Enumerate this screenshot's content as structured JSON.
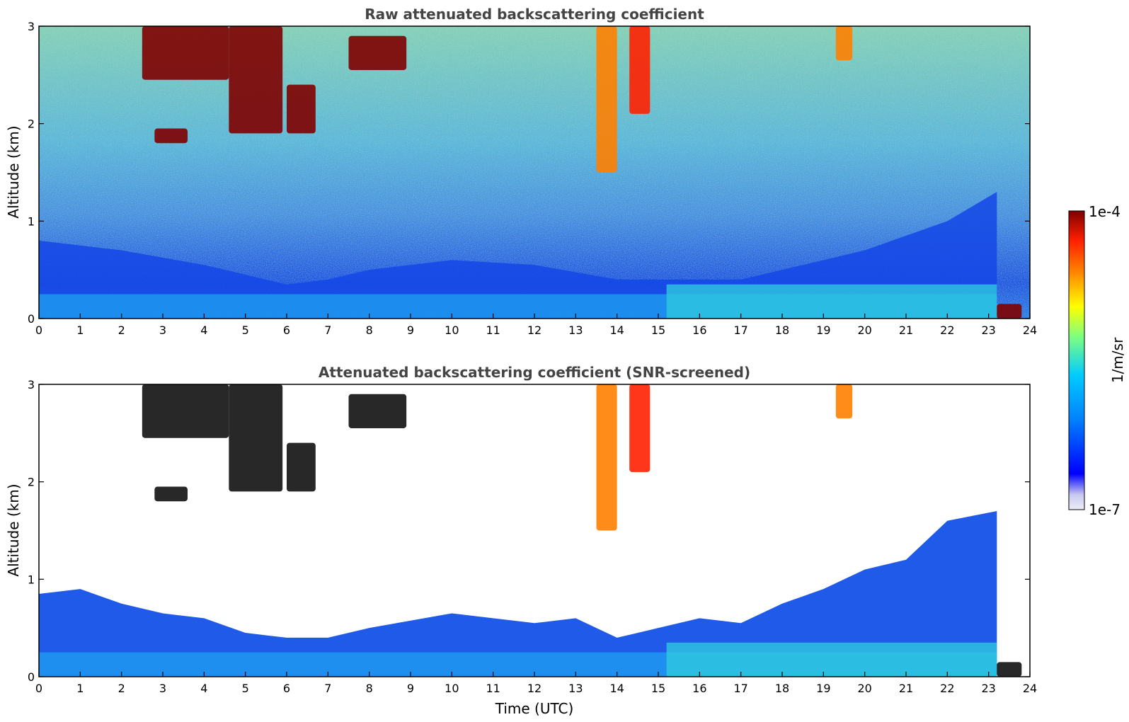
{
  "chart_data": [
    {
      "type": "heatmap",
      "title": "Raw attenuated backscattering coefficient",
      "xlabel": "",
      "ylabel": "Altitude (km)",
      "xlim": [
        0,
        24
      ],
      "ylim": [
        0,
        3
      ],
      "xticks": [
        "0",
        "1",
        "2",
        "3",
        "4",
        "5",
        "6",
        "7",
        "8",
        "9",
        "10",
        "11",
        "12",
        "13",
        "14",
        "15",
        "16",
        "17",
        "18",
        "19",
        "20",
        "21",
        "22",
        "23",
        "24"
      ],
      "yticks": [
        "0",
        "1",
        "2",
        "3"
      ],
      "x_units": "hours UTC",
      "y_units": "km",
      "boundary_layer_top_km": {
        "x": [
          0,
          2,
          4,
          6,
          7,
          8,
          10,
          12,
          14,
          16,
          17,
          18,
          20,
          22,
          23.2
        ],
        "y": [
          0.8,
          0.7,
          0.55,
          0.35,
          0.4,
          0.5,
          0.6,
          0.55,
          0.4,
          0.4,
          0.4,
          0.5,
          0.7,
          1.0,
          1.3
        ]
      },
      "clouds": [
        {
          "x0": 2.5,
          "x1": 4.6,
          "y0": 2.45,
          "y1": 3.0,
          "level": 1.0
        },
        {
          "x0": 4.6,
          "x1": 5.9,
          "y0": 1.9,
          "y1": 3.0,
          "level": 1.0
        },
        {
          "x0": 6.0,
          "x1": 6.7,
          "y0": 1.9,
          "y1": 2.4,
          "level": 1.0
        },
        {
          "x0": 7.5,
          "x1": 8.9,
          "y0": 2.55,
          "y1": 2.9,
          "level": 1.0
        },
        {
          "x0": 2.8,
          "x1": 3.6,
          "y0": 1.8,
          "y1": 1.95,
          "level": 1.0
        },
        {
          "x0": 13.5,
          "x1": 14.0,
          "y0": 1.5,
          "y1": 3.0,
          "level": 0.8
        },
        {
          "x0": 14.3,
          "x1": 14.8,
          "y0": 2.1,
          "y1": 3.0,
          "level": 0.85
        },
        {
          "x0": 19.3,
          "x1": 19.7,
          "y0": 2.65,
          "y1": 3.0,
          "level": 0.75
        },
        {
          "x0": 23.2,
          "x1": 23.8,
          "y0": 0.0,
          "y1": 0.15,
          "level": 1.0
        }
      ]
    },
    {
      "type": "heatmap",
      "title": "Attenuated backscattering coefficient (SNR-screened)",
      "xlabel": "Time (UTC)",
      "ylabel": "Altitude (km)",
      "xlim": [
        0,
        24
      ],
      "ylim": [
        0,
        3
      ],
      "xticks": [
        "0",
        "1",
        "2",
        "3",
        "4",
        "5",
        "6",
        "7",
        "8",
        "9",
        "10",
        "11",
        "12",
        "13",
        "14",
        "15",
        "16",
        "17",
        "18",
        "19",
        "20",
        "21",
        "22",
        "23",
        "24"
      ],
      "yticks": [
        "0",
        "1",
        "2",
        "3"
      ],
      "x_units": "hours UTC",
      "y_units": "km",
      "screened_layer_top_km": {
        "x": [
          0,
          1,
          2,
          3,
          4,
          5,
          6,
          7,
          8,
          10,
          12,
          13,
          14,
          15,
          16,
          17,
          18,
          19,
          20,
          21,
          22,
          23.2
        ],
        "y": [
          0.85,
          0.9,
          0.75,
          0.65,
          0.6,
          0.45,
          0.4,
          0.4,
          0.5,
          0.65,
          0.55,
          0.6,
          0.4,
          0.5,
          0.6,
          0.55,
          0.75,
          0.9,
          1.1,
          1.2,
          1.6,
          1.7
        ]
      }
    }
  ],
  "colorbar": {
    "label": "1/m/sr",
    "max_label": "1e-4",
    "min_label": "1e-7",
    "scale": "log",
    "colormap": "jet",
    "colors": [
      "#ecedf8",
      "#c8c8ef",
      "#0000ff",
      "#0080ff",
      "#00ccff",
      "#7fff7f",
      "#ffff00",
      "#ff8000",
      "#ff2000",
      "#800000"
    ]
  }
}
